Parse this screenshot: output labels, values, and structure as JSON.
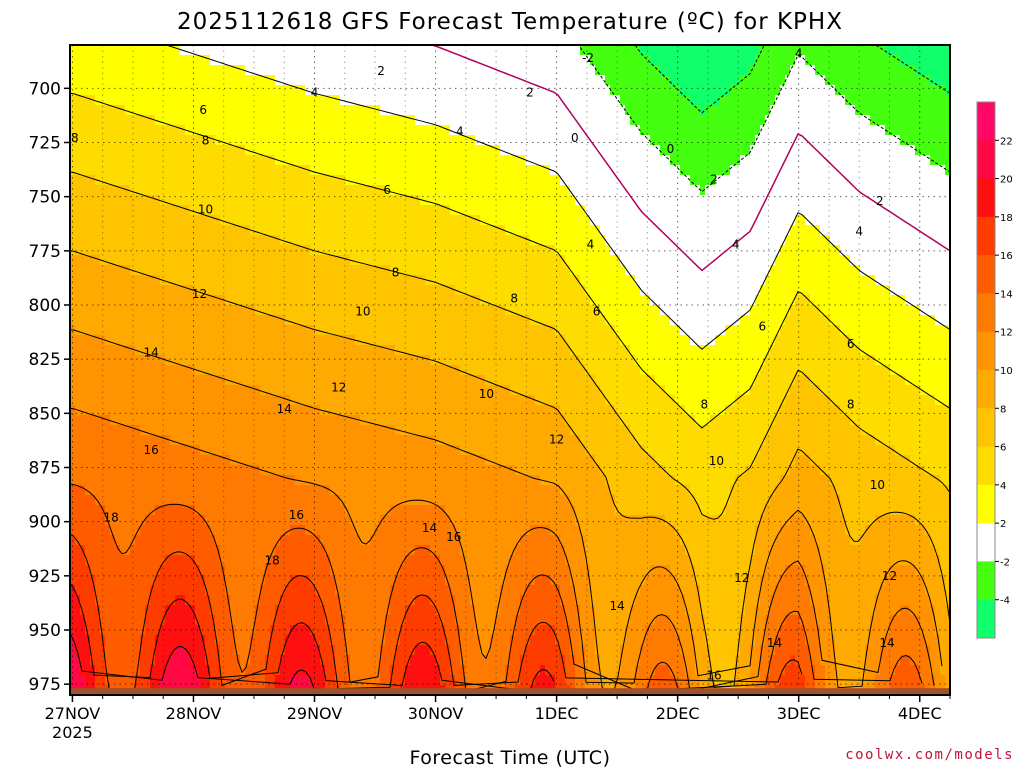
{
  "chart_data": {
    "type": "heatmap",
    "title": "2025112618 GFS Forecast Temperature (ºC) for KPHX",
    "xlabel": "Forecast Time (UTC)",
    "ylabel": "",
    "credit": "coolwx.com/models",
    "x_ticks": [
      {
        "label": "27NOV",
        "sub": "2025",
        "day": 0
      },
      {
        "label": "28NOV",
        "sub": "",
        "day": 1
      },
      {
        "label": "29NOV",
        "sub": "",
        "day": 2
      },
      {
        "label": "30NOV",
        "sub": "",
        "day": 3
      },
      {
        "label": "1DEC",
        "sub": "",
        "day": 4
      },
      {
        "label": "2DEC",
        "sub": "",
        "day": 5
      },
      {
        "label": "3DEC",
        "sub": "",
        "day": 6
      },
      {
        "label": "4DEC",
        "sub": "",
        "day": 7
      }
    ],
    "xlim_days": [
      -0.02,
      7.25
    ],
    "y_ticks": [
      700,
      725,
      750,
      775,
      800,
      825,
      850,
      875,
      900,
      925,
      950,
      975
    ],
    "ylim_hpa": [
      680,
      980
    ],
    "surface_pressure_hpa": 975,
    "colorbar": {
      "labels": [
        "22",
        "20",
        "18",
        "16",
        "14",
        "12",
        "10",
        "8",
        "6",
        "4",
        "2",
        "-2",
        "-4"
      ],
      "bands": [
        {
          "min": 22,
          "max": 24,
          "color": "#ff0868"
        },
        {
          "min": 20,
          "max": 22,
          "color": "#ff0844"
        },
        {
          "min": 18,
          "max": 20,
          "color": "#ff1010"
        },
        {
          "min": 16,
          "max": 18,
          "color": "#ff3c00"
        },
        {
          "min": 14,
          "max": 16,
          "color": "#ff5c00"
        },
        {
          "min": 12,
          "max": 14,
          "color": "#ff7a00"
        },
        {
          "min": 10,
          "max": 12,
          "color": "#ff9400"
        },
        {
          "min": 8,
          "max": 10,
          "color": "#ffaa00"
        },
        {
          "min": 6,
          "max": 8,
          "color": "#ffc400"
        },
        {
          "min": 4,
          "max": 6,
          "color": "#ffdc00"
        },
        {
          "min": 2,
          "max": 4,
          "color": "#ffff00"
        },
        {
          "min": -2,
          "max": 2,
          "color": "#ffffff"
        },
        {
          "min": -4,
          "max": -2,
          "color": "#44ff10"
        },
        {
          "min": -6,
          "max": -4,
          "color": "#10ff6a"
        }
      ]
    },
    "profile_model": {
      "surface_temp_c": 19,
      "lapse_c_per_100hpa": 5.5,
      "diurnal_amp_c": 3.5,
      "diurnal_peak_day_frac": 0.9,
      "cooling_key_days": [
        0,
        1,
        2,
        3,
        4,
        4.7,
        5.2,
        5.6,
        6,
        6.5,
        7,
        7.25
      ],
      "cooling_key_values": [
        0,
        1,
        2,
        2.8,
        4,
        7,
        8.5,
        7.5,
        5,
        6.5,
        7.5,
        8
      ]
    },
    "contour_labels": [
      {
        "value": "2",
        "day": 2.55,
        "p": 692
      },
      {
        "value": "4",
        "day": 2.0,
        "p": 702
      },
      {
        "value": "6",
        "day": 1.08,
        "p": 710
      },
      {
        "value": "8",
        "day": 0.02,
        "p": 723
      },
      {
        "value": "8",
        "day": 1.1,
        "p": 724
      },
      {
        "value": "10",
        "day": 1.1,
        "p": 756
      },
      {
        "value": "12",
        "day": 1.05,
        "p": 795
      },
      {
        "value": "14",
        "day": 0.65,
        "p": 822
      },
      {
        "value": "16",
        "day": 0.65,
        "p": 867
      },
      {
        "value": "18",
        "day": 0.32,
        "p": 898
      },
      {
        "value": "4",
        "day": 3.2,
        "p": 720
      },
      {
        "value": "6",
        "day": 2.6,
        "p": 747
      },
      {
        "value": "8",
        "day": 2.67,
        "p": 785
      },
      {
        "value": "10",
        "day": 2.4,
        "p": 803
      },
      {
        "value": "12",
        "day": 2.2,
        "p": 838
      },
      {
        "value": "14",
        "day": 1.75,
        "p": 848
      },
      {
        "value": "16",
        "day": 1.85,
        "p": 897
      },
      {
        "value": "18",
        "day": 1.65,
        "p": 918
      },
      {
        "value": "14",
        "day": 2.95,
        "p": 903
      },
      {
        "value": "16",
        "day": 3.15,
        "p": 907
      },
      {
        "value": "8",
        "day": 3.65,
        "p": 797
      },
      {
        "value": "10",
        "day": 3.42,
        "p": 841
      },
      {
        "value": "12",
        "day": 4.0,
        "p": 862
      },
      {
        "value": "14",
        "day": 4.5,
        "p": 939
      },
      {
        "value": "2",
        "day": 3.78,
        "p": 702
      },
      {
        "value": "0",
        "day": 4.15,
        "p": 723
      },
      {
        "value": "-2",
        "day": 4.26,
        "p": 686
      },
      {
        "value": "0",
        "day": 4.94,
        "p": 728
      },
      {
        "value": "2",
        "day": 5.3,
        "p": 742
      },
      {
        "value": "4",
        "day": 4.28,
        "p": 772
      },
      {
        "value": "6",
        "day": 4.33,
        "p": 803
      },
      {
        "value": "4",
        "day": 5.48,
        "p": 772
      },
      {
        "value": "6",
        "day": 5.7,
        "p": 810
      },
      {
        "value": "8",
        "day": 5.22,
        "p": 846
      },
      {
        "value": "10",
        "day": 5.32,
        "p": 872
      },
      {
        "value": "12",
        "day": 5.53,
        "p": 926
      },
      {
        "value": "14",
        "day": 5.8,
        "p": 956
      },
      {
        "value": "16",
        "day": 5.3,
        "p": 971
      },
      {
        "value": "4",
        "day": 6.0,
        "p": 684
      },
      {
        "value": "6",
        "day": 6.43,
        "p": 818
      },
      {
        "value": "8",
        "day": 6.43,
        "p": 846
      },
      {
        "value": "2",
        "day": 6.67,
        "p": 752
      },
      {
        "value": "4",
        "day": 6.5,
        "p": 766
      },
      {
        "value": "10",
        "day": 6.65,
        "p": 883
      },
      {
        "value": "12",
        "day": 6.75,
        "p": 925
      },
      {
        "value": "14",
        "day": 6.73,
        "p": 956
      }
    ]
  }
}
